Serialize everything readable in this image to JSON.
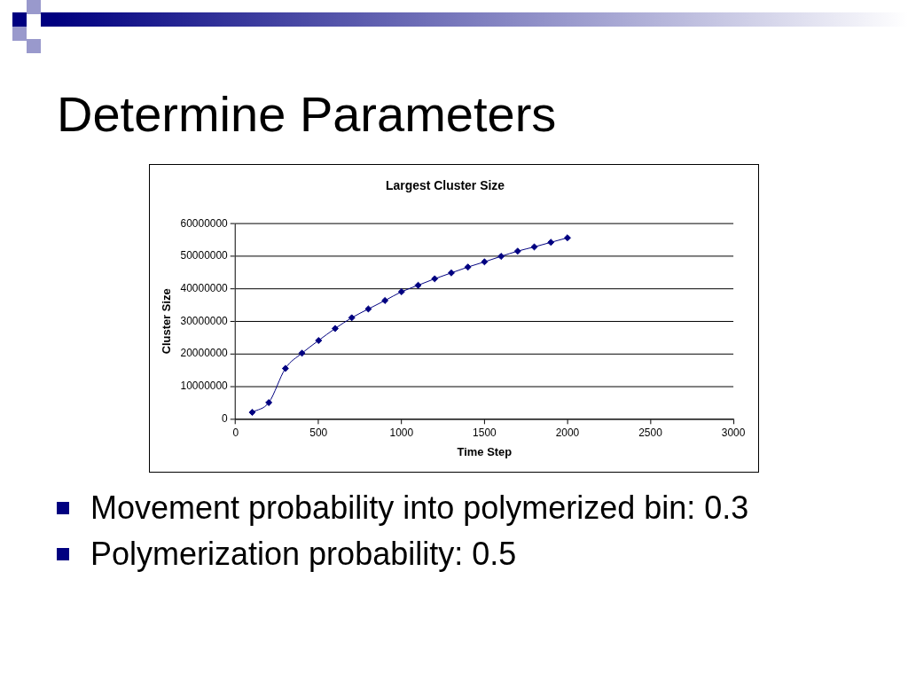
{
  "chart_data": {
    "type": "line",
    "title": "Largest Cluster Size",
    "xlabel": "Time Step",
    "ylabel": "Cluster Size",
    "annotations": [
      "Determine Parameters",
      "Movement probability into polymerized bin: 0.3",
      "Polymerization probability: 0.5"
    ],
    "x": [
      100,
      200,
      300,
      400,
      500,
      600,
      700,
      800,
      900,
      1000,
      1100,
      1200,
      1300,
      1400,
      1500,
      1600,
      1700,
      1800,
      1900,
      2000
    ],
    "series": [
      {
        "color": "#000080",
        "values": [
          2000000,
          5000000,
          15500000,
          20200000,
          24100000,
          27800000,
          31100000,
          33800000,
          36400000,
          39100000,
          41100000,
          43100000,
          44900000,
          46700000,
          48300000,
          50000000,
          51600000,
          52900000,
          54300000,
          55700000
        ]
      }
    ],
    "xlim": [
      0,
      3000
    ],
    "xticks": [
      0,
      500,
      1000,
      1500,
      2000,
      2500,
      3000
    ],
    "ylim": [
      0,
      60000000
    ],
    "yticks": [
      0,
      10000000,
      20000000,
      30000000,
      40000000,
      50000000,
      60000000
    ],
    "grid": "y",
    "legend": false,
    "marker": "diamond",
    "line_style": "solid"
  }
}
